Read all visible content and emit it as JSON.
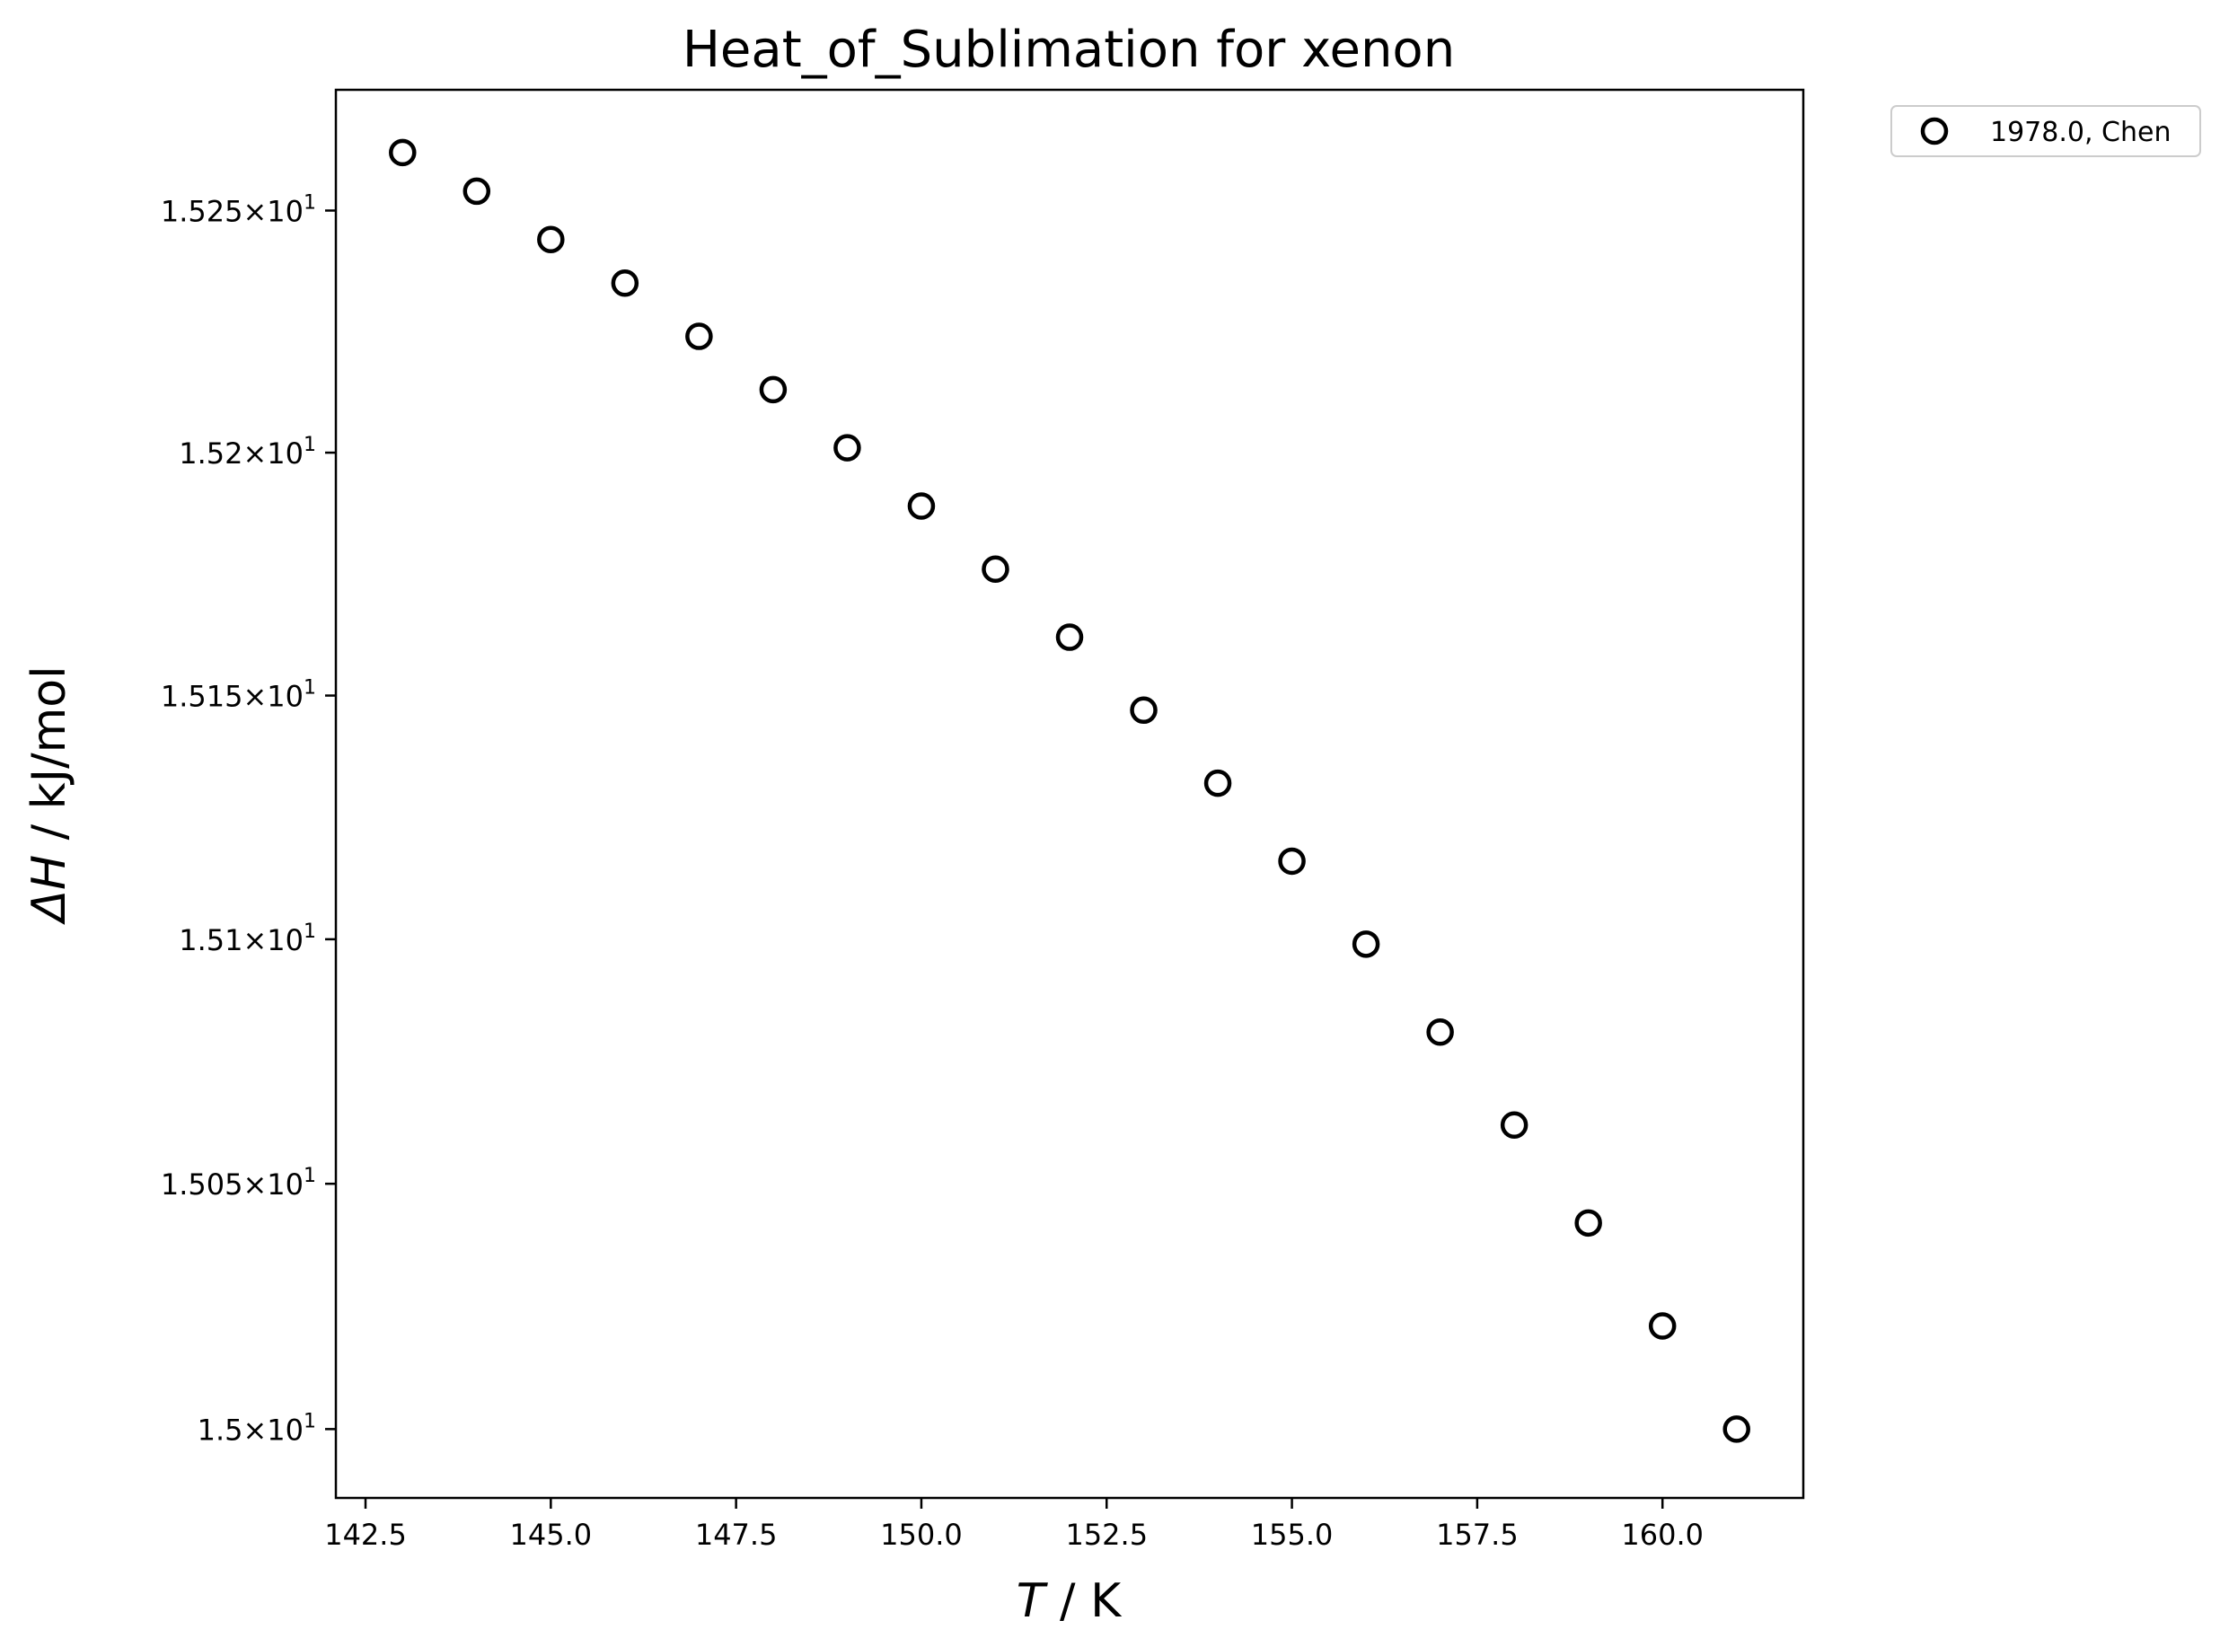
{
  "chart_data": {
    "type": "scatter",
    "title": "Heat_of_Sublimation for xenon",
    "xlabel_symbol": "T",
    "xlabel_unit": " / K",
    "ylabel_symbol": "ΔH",
    "ylabel_unit": " / kJ/mol",
    "x_ticks": [
      "142.5",
      "145.0",
      "147.5",
      "150.0",
      "152.5",
      "155.0",
      "157.5",
      "160.0"
    ],
    "y_ticks": [
      {
        "mantissa": "1.5",
        "exp": "1",
        "value": 15.0
      },
      {
        "mantissa": "1.505",
        "exp": "1",
        "value": 15.05
      },
      {
        "mantissa": "1.51",
        "exp": "1",
        "value": 15.1
      },
      {
        "mantissa": "1.515",
        "exp": "1",
        "value": 15.15
      },
      {
        "mantissa": "1.52",
        "exp": "1",
        "value": 15.2
      },
      {
        "mantissa": "1.525",
        "exp": "1",
        "value": 15.25
      }
    ],
    "xlim": [
      142.1,
      161.9
    ],
    "ylim": [
      14.986,
      15.275
    ],
    "y_scale": "log",
    "grid": false,
    "legend_position": "outside-top-right",
    "series": [
      {
        "name": "1978.0, Chen",
        "marker": "open-circle",
        "color": "#000000",
        "x": [
          143,
          144,
          145,
          146,
          147,
          148,
          149,
          150,
          151,
          152,
          153,
          154,
          155,
          156,
          157,
          158,
          159,
          160,
          161
        ],
        "y": [
          15.262,
          15.254,
          15.244,
          15.235,
          15.224,
          15.213,
          15.201,
          15.189,
          15.176,
          15.162,
          15.147,
          15.132,
          15.116,
          15.099,
          15.081,
          15.062,
          15.042,
          15.021,
          15.0
        ]
      }
    ]
  }
}
